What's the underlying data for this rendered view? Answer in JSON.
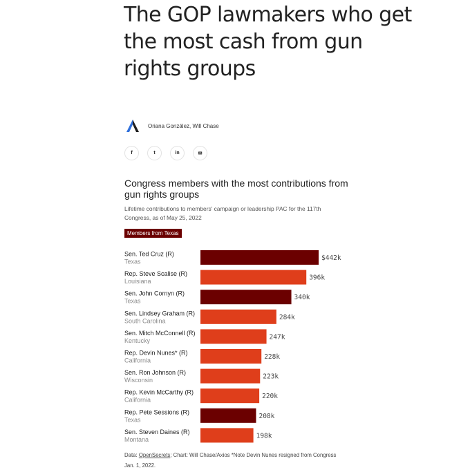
{
  "headline": "The GOP lawmakers who get the most cash from gun rights groups",
  "byline": {
    "logo_icon": "axios-logo-icon",
    "authors": "Oriana González, Will Chase"
  },
  "share": [
    {
      "icon": "facebook-icon",
      "glyph": "f"
    },
    {
      "icon": "twitter-icon",
      "glyph": "t"
    },
    {
      "icon": "linkedin-icon",
      "glyph": "in"
    },
    {
      "icon": "email-icon",
      "glyph": "✉"
    }
  ],
  "chart_data": {
    "type": "bar",
    "orientation": "horizontal",
    "title": "Congress members with the most contributions from gun rights groups",
    "subtitle": "Lifetime contributions to members' campaign or leadership PAC for the 117th Congress, as of May 25, 2022",
    "legend": {
      "label": "Members from Texas",
      "color": "#6b0000"
    },
    "colors": {
      "texas": "#6b0000",
      "other": "#df3e1b"
    },
    "categories": [
      "Sen. Ted Cruz (R)",
      "Rep. Steve Scalise (R)",
      "Sen. John Cornyn (R)",
      "Sen. Lindsey Graham (R)",
      "Sen. Mitch McConnell (R)",
      "Rep. Devin Nunes* (R)",
      "Sen. Ron Johnson (R)",
      "Rep. Kevin McCarthy (R)",
      "Rep. Pete Sessions (R)",
      "Sen. Steven Daines (R)"
    ],
    "states": [
      "Texas",
      "Louisiana",
      "Texas",
      "South Carolina",
      "Kentucky",
      "California",
      "Wisconsin",
      "California",
      "Texas",
      "Montana"
    ],
    "values": [
      442,
      396,
      340,
      284,
      247,
      228,
      223,
      220,
      208,
      198
    ],
    "value_labels": [
      "$442k",
      "396k",
      "340k",
      "284k",
      "247k",
      "228k",
      "223k",
      "220k",
      "208k",
      "198k"
    ],
    "is_texas": [
      true,
      false,
      true,
      false,
      false,
      false,
      false,
      false,
      true,
      false
    ],
    "xlim": [
      0,
      442
    ],
    "units": "thousands of dollars"
  },
  "footnote": {
    "prefix": "Data: ",
    "source_link": "OpenSecrets",
    "rest": "; Chart: Will Chase/Axios *Note Devin Nunes resigned from Congress Jan. 1, 2022."
  }
}
